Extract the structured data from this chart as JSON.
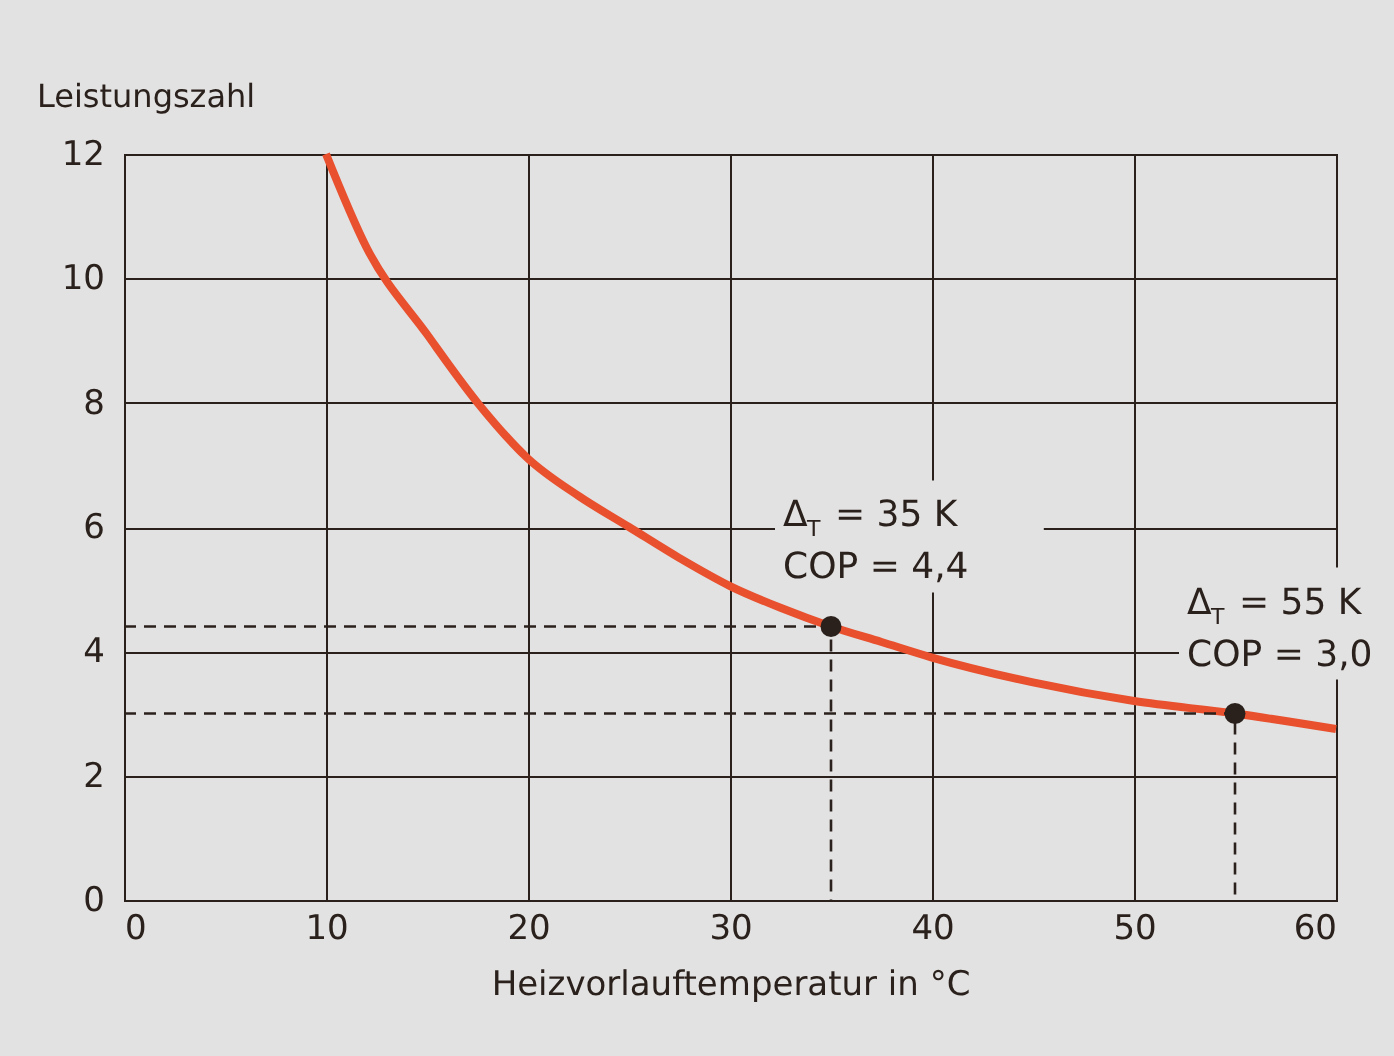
{
  "chart_data": {
    "type": "line",
    "ylabel": "Leistungszahl",
    "xlabel": "Heizvorlauftemperatur in °C",
    "xlim": [
      0,
      60
    ],
    "xticks": [
      0,
      10,
      20,
      30,
      40,
      50,
      60
    ],
    "ylim": [
      0,
      12
    ],
    "yticks": [
      0,
      2,
      4,
      6,
      8,
      10,
      12
    ],
    "grid": true,
    "series": [
      {
        "color": "#e8502e",
        "x": [
          10,
          12,
          15,
          17.5,
          20,
          22.5,
          25,
          27.5,
          30,
          32.5,
          35,
          37.5,
          40,
          45,
          50,
          55,
          60
        ],
        "values": [
          12,
          10.5,
          9.1,
          8.0,
          7.1,
          6.5,
          6.0,
          5.5,
          5.05,
          4.7,
          4.4,
          4.15,
          3.9,
          3.5,
          3.2,
          3.0,
          2.75
        ]
      },
      {
        "type": "line",
        "color": "#2b211c",
        "line_style": "dashed",
        "x": [
          0,
          35,
          35
        ],
        "values": [
          4.4,
          4.4,
          0
        ]
      },
      {
        "type": "line",
        "color": "#2b211c",
        "line_style": "dashed",
        "x": [
          0,
          55,
          55
        ],
        "values": [
          3.0,
          3.0,
          0
        ]
      },
      {
        "type": "scatter",
        "color": "#2b211c",
        "marker": "circle",
        "x": [
          35,
          55
        ],
        "values": [
          4.4,
          3.0
        ]
      }
    ],
    "annotations": [
      {
        "text": "Δ$_{T}$ = 35 K\nCOP = 4,4",
        "x": 35,
        "y": 4.4
      },
      {
        "text": "Δ$_{T}$ = 55 K\nCOP = 3,0",
        "x": 55,
        "y": 3.0
      }
    ]
  }
}
